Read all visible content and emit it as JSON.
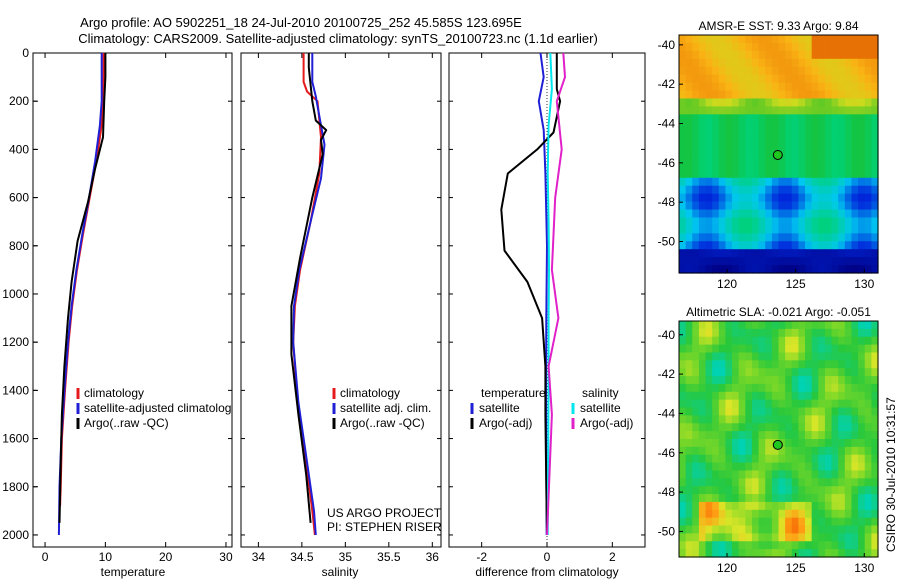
{
  "header": {
    "title_line1": "Argo profile: AO 5902251_18 24-Jul-2010 20100725_252 45.585S 123.695E",
    "title_line2": "Climatology: CARS2009. Satellite-adjusted climatology: synTS_20100723.nc (1.1d earlier)"
  },
  "credit": {
    "project": "US ARGO PROJECT",
    "pi": "PI: STEPHEN RISER",
    "stamp": "CSIRO 30-Jul-2010 10:31:57"
  },
  "colors": {
    "climatology": "#e41a1c",
    "satellite": "#1f1fd6",
    "argo": "#000000",
    "satellite_sal": "#00e5ee",
    "argo_sal": "#e020c8"
  },
  "chart_data": [
    {
      "type": "line",
      "title": "",
      "xlabel": "temperature",
      "ylabel": "",
      "xlim": [
        -2,
        31
      ],
      "ylim": [
        2050,
        0
      ],
      "xticks": [
        "0",
        "10",
        "20",
        "30"
      ],
      "xtick_values": [
        0,
        10,
        20,
        30
      ],
      "yticks": [
        "0",
        "200",
        "400",
        "600",
        "800",
        "1000",
        "1200",
        "1400",
        "1600",
        "1800",
        "2000"
      ],
      "ytick_values": [
        0,
        200,
        400,
        600,
        800,
        1000,
        1200,
        1400,
        1600,
        1800,
        2000
      ],
      "legend": [
        "climatology",
        "satellite-adjusted climatology",
        "Argo(..raw -QC)"
      ],
      "series": [
        {
          "name": "climatology",
          "color": "#e41a1c",
          "x": [
            9.7,
            9.7,
            9.6,
            9.4,
            8.5,
            7.4,
            6.3,
            5.3,
            4.5,
            3.9,
            3.3,
            2.8,
            2.6,
            2.5
          ],
          "y": [
            0,
            100,
            200,
            300,
            450,
            600,
            750,
            900,
            1050,
            1200,
            1400,
            1600,
            1800,
            1880
          ]
        },
        {
          "name": "satellite-adjusted climatology",
          "color": "#1f1fd6",
          "x": [
            9.4,
            9.4,
            9.4,
            9.1,
            8.3,
            7.3,
            6.2,
            5.2,
            4.4,
            3.8,
            3.2,
            2.7,
            2.4,
            2.3
          ],
          "y": [
            0,
            100,
            200,
            300,
            450,
            600,
            750,
            900,
            1050,
            1200,
            1400,
            1600,
            1800,
            2000
          ]
        },
        {
          "name": "Argo(..raw -QC)",
          "color": "#000000",
          "x": [
            10.0,
            10.0,
            9.8,
            9.6,
            8.3,
            7.1,
            5.4,
            4.4,
            3.8,
            3.2,
            2.8,
            2.6,
            2.4
          ],
          "y": [
            0,
            100,
            200,
            350,
            480,
            620,
            780,
            950,
            1100,
            1300,
            1500,
            1700,
            1950
          ]
        }
      ]
    },
    {
      "type": "line",
      "title": "",
      "xlabel": "salinity",
      "ylabel": "",
      "xlim": [
        33.8,
        36.1
      ],
      "ylim": [
        2050,
        0
      ],
      "xticks": [
        "34",
        "34.5",
        "35",
        "35.5",
        "36"
      ],
      "xtick_values": [
        34,
        34.5,
        35,
        35.5,
        36
      ],
      "legend": [
        "climatology",
        "satellite adj. clim.",
        "Argo(..raw -QC)"
      ],
      "series": [
        {
          "name": "climatology",
          "color": "#e41a1c",
          "x": [
            34.52,
            34.52,
            34.56,
            34.68,
            34.72,
            34.7,
            34.6,
            34.48,
            34.42,
            34.4,
            34.45,
            34.55,
            34.62,
            34.65
          ],
          "y": [
            0,
            120,
            160,
            200,
            350,
            500,
            700,
            900,
            1050,
            1200,
            1450,
            1700,
            1900,
            2000
          ]
        },
        {
          "name": "satellite adj. clim.",
          "color": "#1f1fd6",
          "x": [
            34.62,
            34.62,
            34.66,
            34.72,
            34.76,
            34.72,
            34.6,
            34.47,
            34.41,
            34.4,
            34.46,
            34.56,
            34.64,
            34.66
          ],
          "y": [
            0,
            120,
            180,
            300,
            380,
            520,
            700,
            900,
            1050,
            1200,
            1450,
            1700,
            1900,
            2000
          ]
        },
        {
          "name": "Argo(..raw -QC)",
          "color": "#000000",
          "x": [
            34.58,
            34.58,
            34.62,
            34.66,
            34.78,
            34.72,
            34.74,
            34.62,
            34.48,
            34.38,
            34.38,
            34.46,
            34.55,
            34.6
          ],
          "y": [
            0,
            60,
            200,
            280,
            320,
            360,
            420,
            600,
            850,
            1050,
            1250,
            1500,
            1750,
            1950
          ]
        }
      ]
    },
    {
      "type": "line",
      "title": "",
      "xlabel": "difference from climatology",
      "ylabel": "",
      "xlim": [
        -3,
        3
      ],
      "ylim": [
        2050,
        0
      ],
      "xticks": [
        "-2",
        "0",
        "2"
      ],
      "xtick_values": [
        -2,
        0,
        2
      ],
      "legend": [
        "temperature",
        "satellite",
        "Argo(-adj)",
        "salinity",
        "satellite",
        "Argo(-adj)"
      ],
      "series": [
        {
          "name": "temperature satellite",
          "color": "#1f1fd6",
          "x": [
            -0.2,
            -0.1,
            -0.25,
            -0.1,
            -0.05,
            0.0,
            -0.02,
            -0.03,
            -0.02,
            -0.01
          ],
          "y": [
            0,
            100,
            200,
            320,
            500,
            800,
            1100,
            1400,
            1700,
            2000
          ]
        },
        {
          "name": "temperature Argo(-adj)",
          "color": "#000000",
          "x": [
            0.3,
            0.3,
            0.4,
            0.2,
            -0.3,
            -1.2,
            -1.4,
            -1.3,
            -0.6,
            -0.15,
            -0.05,
            -0.05,
            -0.02,
            0.0
          ],
          "y": [
            0,
            150,
            200,
            330,
            400,
            500,
            650,
            820,
            950,
            1100,
            1300,
            1500,
            1800,
            2000
          ]
        },
        {
          "name": "salinity satellite",
          "color": "#00e5ee",
          "x": [
            0.1,
            0.15,
            0.05,
            0.02,
            0.05,
            0.06,
            0.05,
            0.05,
            0.04,
            0.02
          ],
          "y": [
            0,
            150,
            300,
            500,
            700,
            900,
            1100,
            1300,
            1600,
            2000
          ]
        },
        {
          "name": "salinity Argo(-adj)",
          "color": "#e020c8",
          "x": [
            0.5,
            0.55,
            0.3,
            0.45,
            0.25,
            0.15,
            0.35,
            0.05,
            0.15,
            0.0
          ],
          "y": [
            0,
            100,
            200,
            400,
            600,
            900,
            1100,
            1300,
            1500,
            2000
          ]
        }
      ]
    },
    {
      "type": "heatmap",
      "title": "AMSR-E SST: 9.33 Argo: 9.84",
      "xlim": [
        116.5,
        131
      ],
      "ylim": [
        -51.6,
        -39.5
      ],
      "xticks": [
        "120",
        "125",
        "130"
      ],
      "xtick_values": [
        120,
        125,
        130
      ],
      "yticks": [
        "-40",
        "-42",
        "-44",
        "-46",
        "-48",
        "-50"
      ],
      "ytick_values": [
        -40,
        -42,
        -44,
        -46,
        -48,
        -50
      ],
      "marker": {
        "lon": 123.7,
        "lat": -45.6
      }
    },
    {
      "type": "heatmap",
      "title": "Altimetric SLA: -0.021 Argo: -0.051",
      "xlim": [
        116.5,
        131
      ],
      "ylim": [
        -51.3,
        -39.3
      ],
      "xticks": [
        "120",
        "125",
        "130"
      ],
      "xtick_values": [
        120,
        125,
        130
      ],
      "yticks": [
        "-40",
        "-42",
        "-44",
        "-46",
        "-48",
        "-50"
      ],
      "ytick_values": [
        -40,
        -42,
        -44,
        -46,
        -48,
        -50
      ],
      "marker": {
        "lon": 123.7,
        "lat": -45.6
      }
    }
  ]
}
